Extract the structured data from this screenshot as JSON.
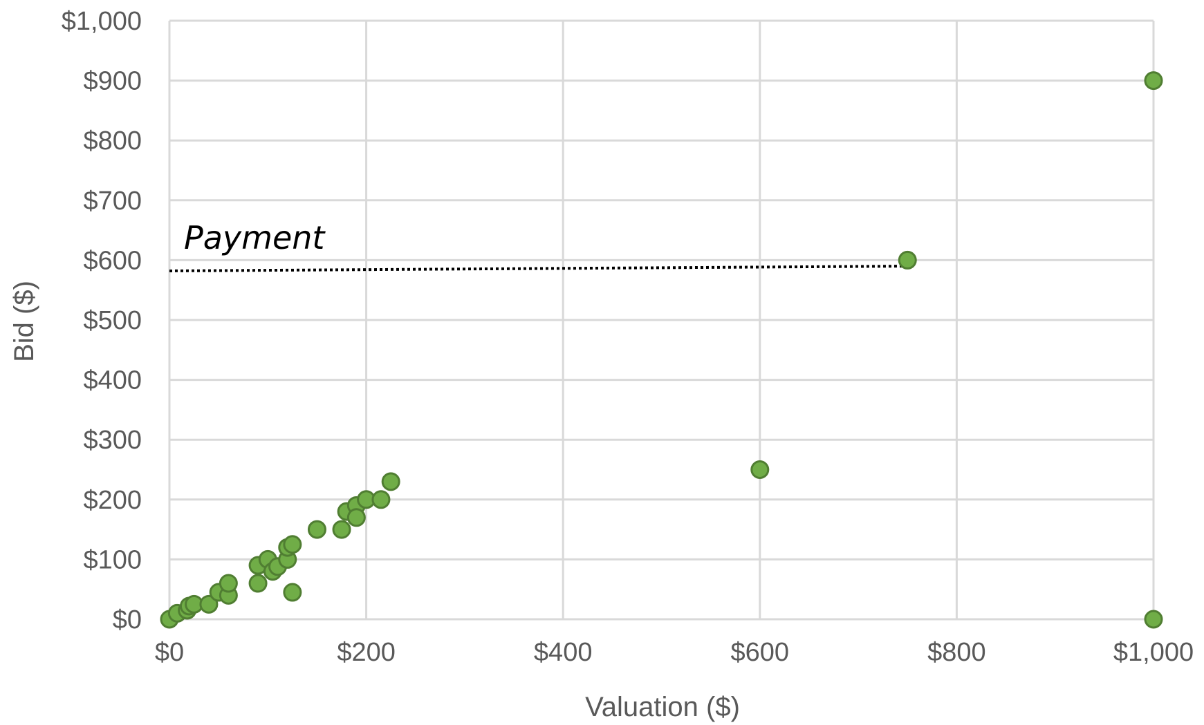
{
  "chart_data": {
    "type": "scatter",
    "xlabel": "Valuation ($)",
    "ylabel": "Bid ($)",
    "xlim": [
      0,
      1000
    ],
    "ylim": [
      0,
      1000
    ],
    "x_ticks": [
      0,
      200,
      400,
      600,
      800,
      1000
    ],
    "y_ticks": [
      0,
      100,
      200,
      300,
      400,
      500,
      600,
      700,
      800,
      900,
      1000
    ],
    "x_tick_labels": [
      "$0",
      "$200",
      "$400",
      "$600",
      "$800",
      "$1,000"
    ],
    "y_tick_labels": [
      "$0",
      "$100",
      "$200",
      "$300",
      "$400",
      "$500",
      "$600",
      "$700",
      "$800",
      "$900",
      "$1,000"
    ],
    "grid": true,
    "legend": "none",
    "colors": {
      "marker_fill": "#70AD47",
      "marker_stroke": "#507E32",
      "grid": "#D9D9D9",
      "text": "#595959",
      "annotation": "#000000"
    },
    "points": [
      {
        "x": 0,
        "y": 0
      },
      {
        "x": 8,
        "y": 10
      },
      {
        "x": 18,
        "y": 15
      },
      {
        "x": 20,
        "y": 22
      },
      {
        "x": 25,
        "y": 25
      },
      {
        "x": 40,
        "y": 25
      },
      {
        "x": 50,
        "y": 45
      },
      {
        "x": 60,
        "y": 40
      },
      {
        "x": 60,
        "y": 60
      },
      {
        "x": 90,
        "y": 60
      },
      {
        "x": 90,
        "y": 90
      },
      {
        "x": 100,
        "y": 100
      },
      {
        "x": 105,
        "y": 80
      },
      {
        "x": 110,
        "y": 88
      },
      {
        "x": 120,
        "y": 100
      },
      {
        "x": 120,
        "y": 120
      },
      {
        "x": 125,
        "y": 125
      },
      {
        "x": 125,
        "y": 45
      },
      {
        "x": 150,
        "y": 150
      },
      {
        "x": 175,
        "y": 150
      },
      {
        "x": 180,
        "y": 180
      },
      {
        "x": 190,
        "y": 190
      },
      {
        "x": 190,
        "y": 170
      },
      {
        "x": 200,
        "y": 200
      },
      {
        "x": 215,
        "y": 200
      },
      {
        "x": 225,
        "y": 230
      },
      {
        "x": 600,
        "y": 250
      },
      {
        "x": 750,
        "y": 600
      },
      {
        "x": 1000,
        "y": 900
      },
      {
        "x": 1000,
        "y": 0
      }
    ],
    "annotation": {
      "text": "Payment",
      "line": {
        "x1": 0,
        "y1": 582,
        "x2": 750,
        "y2": 590,
        "style": "dotted"
      }
    }
  }
}
